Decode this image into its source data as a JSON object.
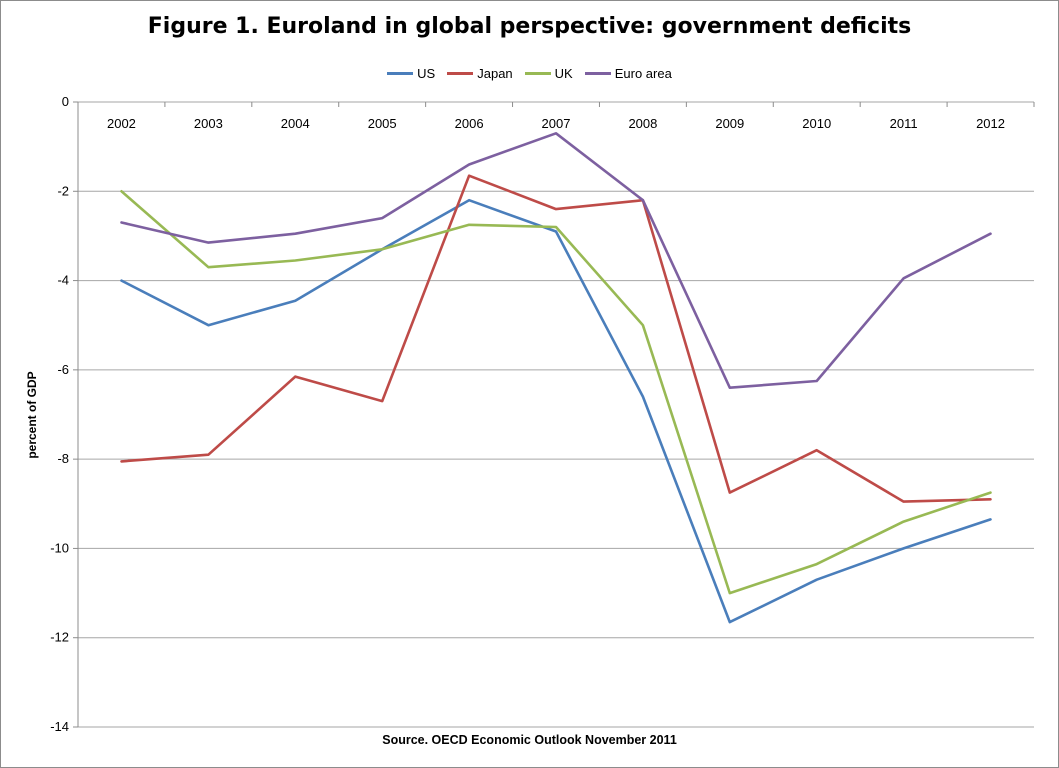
{
  "chart_data": {
    "type": "line",
    "title": "Figure 1. Euroland in global perspective: government deficits",
    "ylabel": "percent of GDP",
    "xlabel": "",
    "source": "Source. OECD Economic Outlook November 2011",
    "categories": [
      "2002",
      "2003",
      "2004",
      "2005",
      "2006",
      "2007",
      "2008",
      "2009",
      "2010",
      "2011",
      "2012"
    ],
    "ylim": [
      -14,
      0
    ],
    "yticks": [
      0,
      -2,
      -4,
      -6,
      -8,
      -10,
      -12,
      -14
    ],
    "grid": "horizontal",
    "legend_position": "top",
    "series": [
      {
        "name": "US",
        "color": "#4a7ebb",
        "values": [
          -4.0,
          -5.0,
          -4.45,
          -3.3,
          -2.2,
          -2.9,
          -6.6,
          -11.65,
          -10.7,
          -10.0,
          -9.35
        ]
      },
      {
        "name": "Japan",
        "color": "#be4b48",
        "values": [
          -8.05,
          -7.9,
          -6.15,
          -6.7,
          -1.65,
          -2.4,
          -2.2,
          -8.75,
          -7.8,
          -8.95,
          -8.9
        ]
      },
      {
        "name": "UK",
        "color": "#98b954",
        "values": [
          -2.0,
          -3.7,
          -3.55,
          -3.3,
          -2.75,
          -2.8,
          -5.0,
          -11.0,
          -10.35,
          -9.4,
          -8.75
        ]
      },
      {
        "name": "Euro area",
        "color": "#7d60a0",
        "values": [
          -2.7,
          -3.15,
          -2.95,
          -2.6,
          -1.4,
          -0.7,
          -2.2,
          -6.4,
          -6.25,
          -3.95,
          -2.95
        ]
      }
    ]
  }
}
